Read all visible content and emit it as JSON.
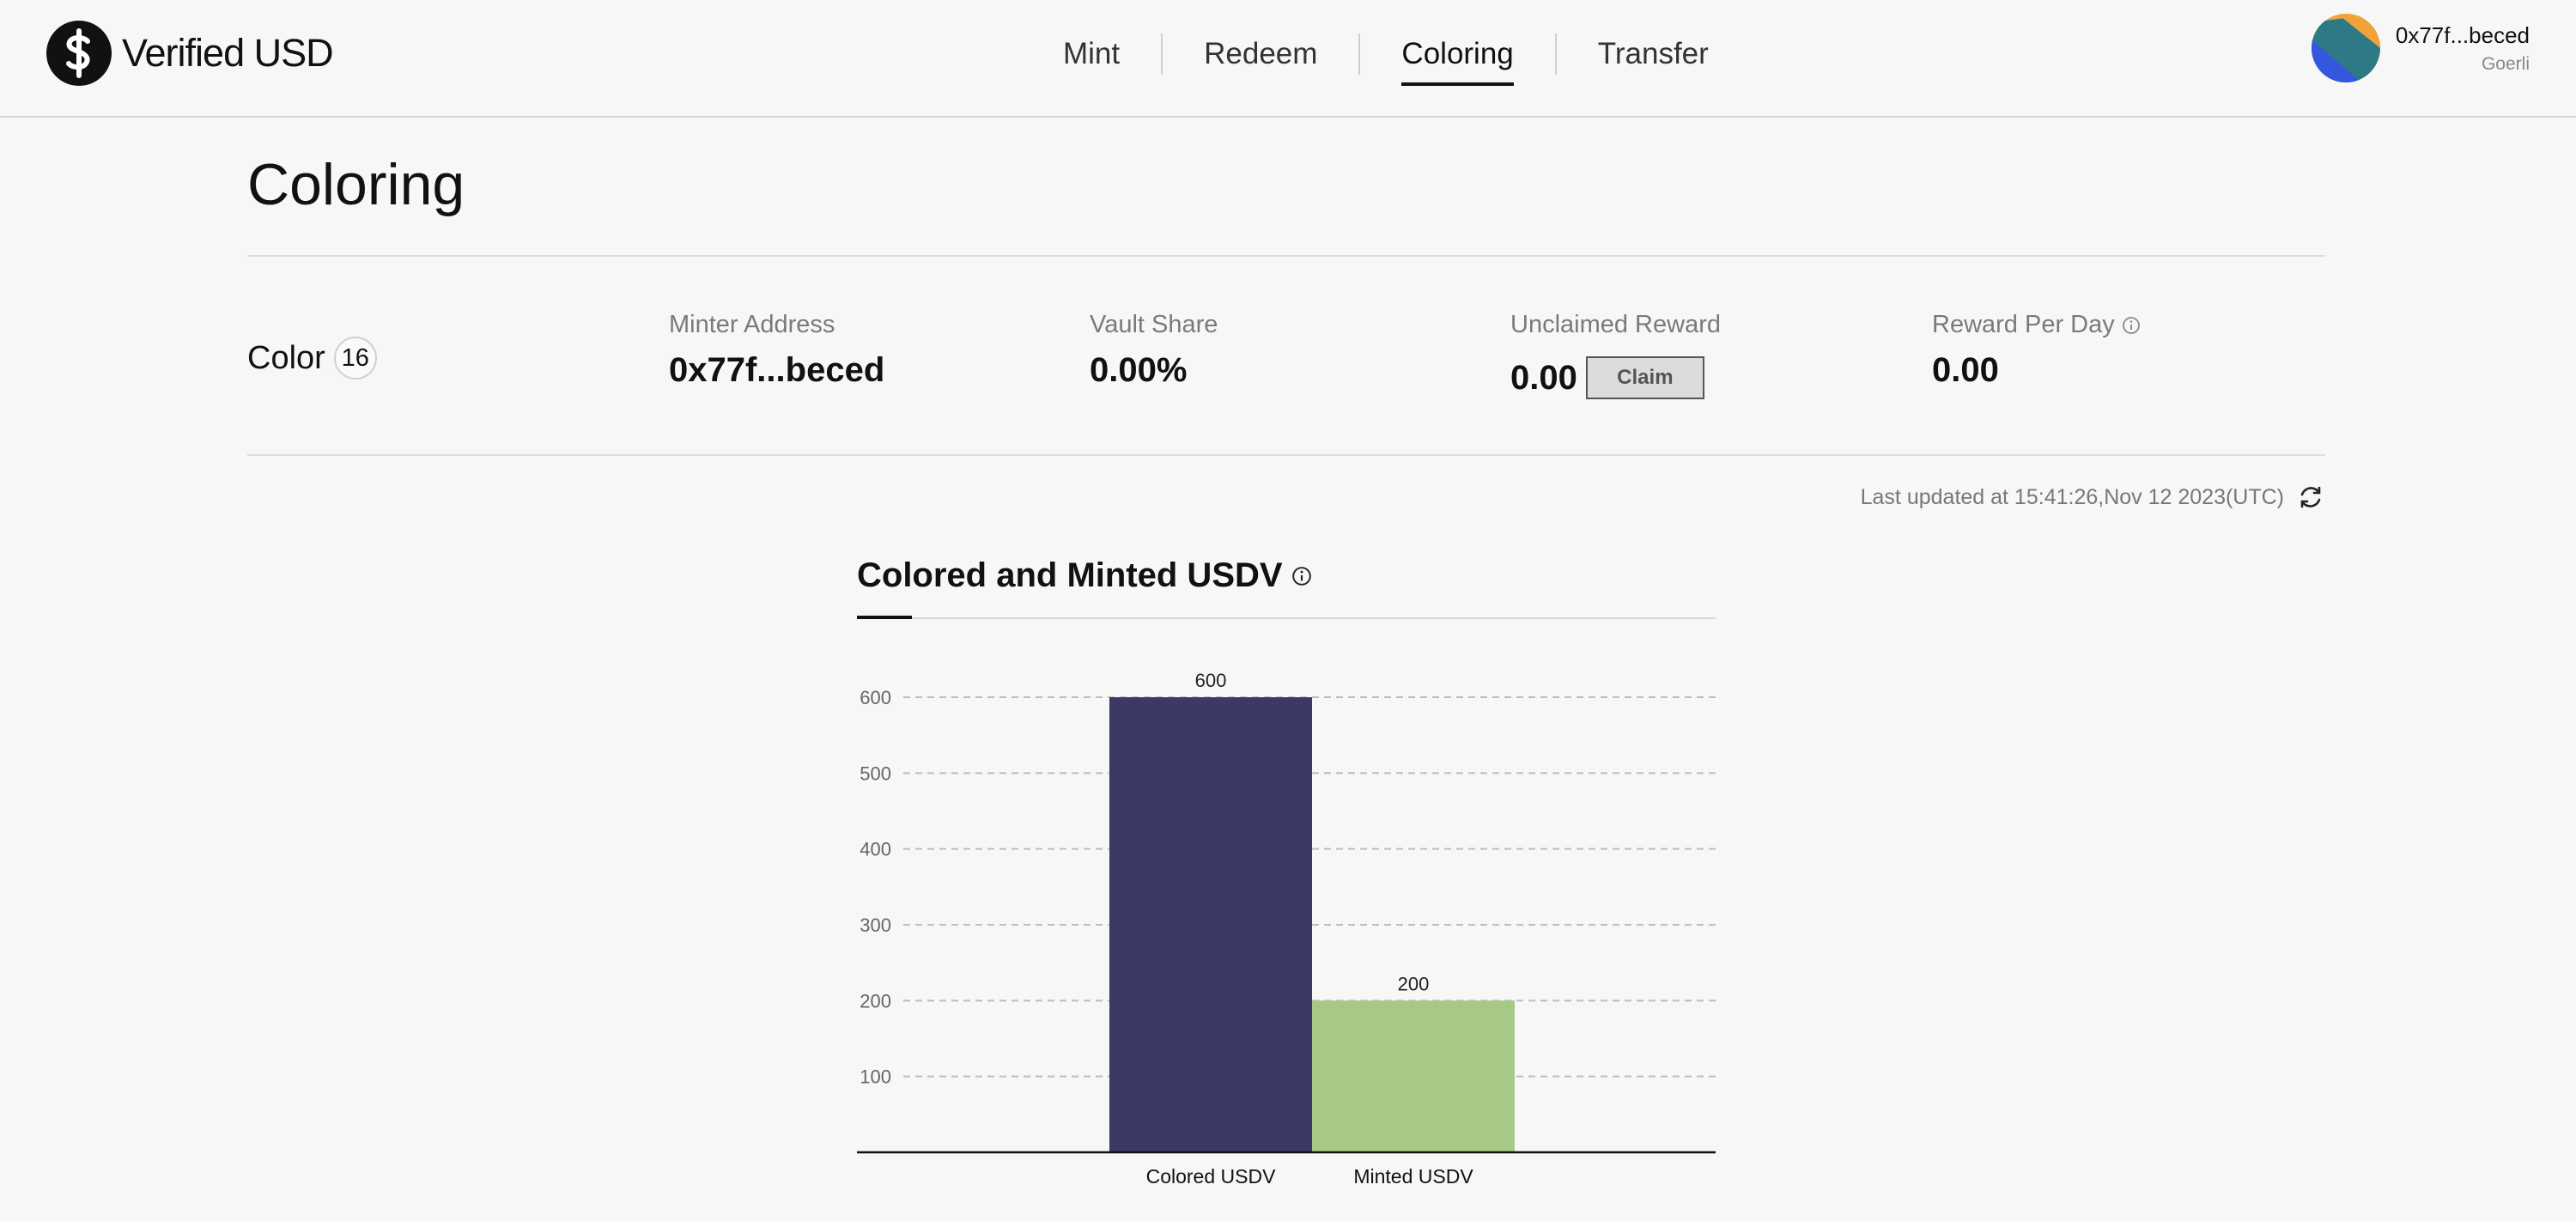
{
  "header": {
    "brand": "Verified USD",
    "nav": [
      {
        "label": "Mint",
        "active": false
      },
      {
        "label": "Redeem",
        "active": false
      },
      {
        "label": "Coloring",
        "active": true
      },
      {
        "label": "Transfer",
        "active": false
      }
    ],
    "wallet": {
      "address": "0x77f...beced",
      "network": "Goerli"
    }
  },
  "page": {
    "title": "Coloring",
    "color": {
      "label": "Color",
      "badge": "16"
    },
    "stats": {
      "minter_address": {
        "label": "Minter Address",
        "value": "0x77f...beced"
      },
      "vault_share": {
        "label": "Vault Share",
        "value": "0.00%"
      },
      "unclaimed_reward": {
        "label": "Unclaimed Reward",
        "value": "0.00",
        "button": "Claim"
      },
      "reward_per_day": {
        "label": "Reward Per Day",
        "value": "0.00"
      }
    },
    "last_updated": "Last updated at 15:41:26,Nov 12 2023(UTC)"
  },
  "chart_data": {
    "type": "bar",
    "title": "Colored and Minted USDV",
    "categories": [
      "Colored USDV",
      "Minted USDV"
    ],
    "values": [
      600,
      200
    ],
    "colors": [
      "#3c3966",
      "#a8c986"
    ],
    "yticks": [
      100,
      200,
      300,
      400,
      500,
      600
    ],
    "ylim": [
      0,
      600
    ],
    "grid": true,
    "data_labels": [
      "600",
      "200"
    ]
  },
  "colors": {
    "accent": "#111111",
    "bar_primary": "#3c3966",
    "bar_secondary": "#a8c986"
  }
}
